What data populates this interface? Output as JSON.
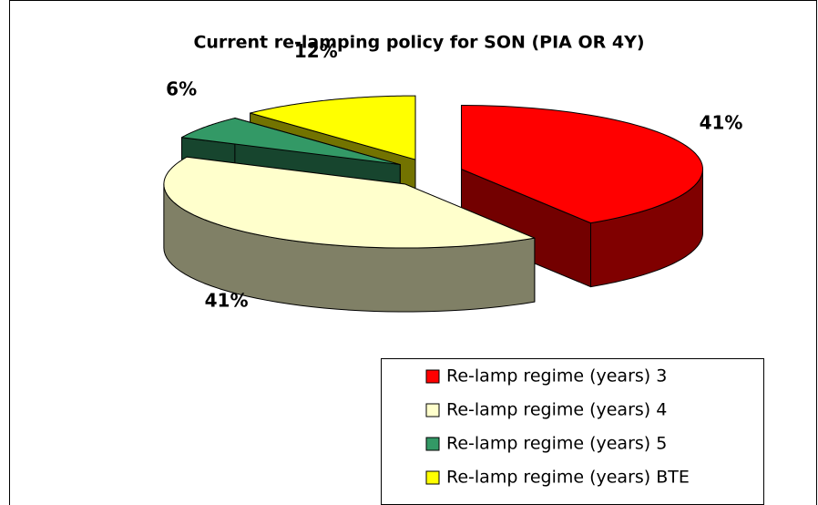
{
  "chart_data": {
    "type": "pie",
    "title": "Current re-lamping policy for SON (PIA OR 4Y)",
    "categories": [
      "Re-lamp regime (years) 3",
      "Re-lamp regime (years) 4",
      "Re-lamp regime (years) 5",
      "Re-lamp regime (years) BTE"
    ],
    "values": [
      41,
      41,
      6,
      12
    ],
    "value_labels": [
      "41%",
      "41%",
      "6%",
      "12%"
    ],
    "colors": [
      "#ff0000",
      "#ffffcc",
      "#339966",
      "#ffff00"
    ],
    "legend": "bottom-right"
  }
}
